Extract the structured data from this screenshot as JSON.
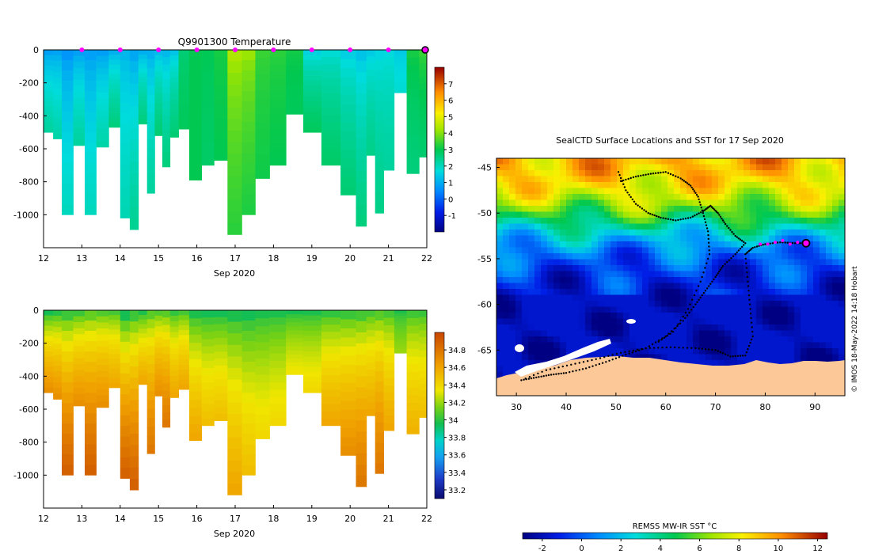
{
  "chart_data": [
    {
      "type": "heatmap",
      "title": "Q9901300  Temperature",
      "xlabel": "Sep 2020",
      "ylabel": "",
      "xlim": [
        12,
        22
      ],
      "ylim": [
        -1200,
        0
      ],
      "x_ticks": [
        "12",
        "13",
        "14",
        "15",
        "16",
        "17",
        "18",
        "19",
        "20",
        "21",
        "22"
      ],
      "y_ticks": [
        "0",
        "-200",
        "-400",
        "-600",
        "-800",
        "-1000"
      ],
      "y_tick_values": [
        0,
        -200,
        -400,
        -600,
        -800,
        -1000
      ],
      "surface_markers_day": [
        13,
        14,
        15,
        16,
        17,
        18,
        19,
        20,
        21
      ],
      "current_profile_day": 22.0,
      "colorbar": {
        "min": -2,
        "max": 8,
        "ticks": [
          "-1",
          "0",
          "1",
          "2",
          "3",
          "4",
          "5",
          "6",
          "7"
        ],
        "tick_values": [
          -1,
          0,
          1,
          2,
          3,
          4,
          5,
          6,
          7
        ]
      },
      "profiles": [
        {
          "day": 12.15,
          "max_depth": 500,
          "surface": 0.4,
          "deep": 2.3
        },
        {
          "day": 12.35,
          "max_depth": 540,
          "surface": 0.5,
          "deep": 2.2
        },
        {
          "day": 12.6,
          "max_depth": 1000,
          "surface": 0.3,
          "deep": 2.0
        },
        {
          "day": 12.95,
          "max_depth": 580,
          "surface": 0.4,
          "deep": 2.3
        },
        {
          "day": 13.2,
          "max_depth": 1000,
          "surface": 0.5,
          "deep": 2.0
        },
        {
          "day": 13.55,
          "max_depth": 590,
          "surface": 0.4,
          "deep": 2.2
        },
        {
          "day": 13.85,
          "max_depth": 470,
          "surface": 0.6,
          "deep": 2.6
        },
        {
          "day": 14.15,
          "max_depth": 1020,
          "surface": 0.9,
          "deep": 2.1
        },
        {
          "day": 14.35,
          "max_depth": 1090,
          "surface": 0.5,
          "deep": 2.4
        },
        {
          "day": 14.6,
          "max_depth": 450,
          "surface": 0.6,
          "deep": 2.6
        },
        {
          "day": 14.8,
          "max_depth": 870,
          "surface": 0.7,
          "deep": 2.3
        },
        {
          "day": 15.0,
          "max_depth": 520,
          "surface": 0.8,
          "deep": 2.7
        },
        {
          "day": 15.2,
          "max_depth": 710,
          "surface": 0.8,
          "deep": 2.6
        },
        {
          "day": 15.4,
          "max_depth": 530,
          "surface": 1.0,
          "deep": 2.7
        },
        {
          "day": 15.65,
          "max_depth": 480,
          "surface": 2.6,
          "deep": 2.9
        },
        {
          "day": 15.95,
          "max_depth": 790,
          "surface": 3.0,
          "deep": 3.0
        },
        {
          "day": 16.3,
          "max_depth": 700,
          "surface": 3.0,
          "deep": 2.8
        },
        {
          "day": 16.6,
          "max_depth": 670,
          "surface": 3.2,
          "deep": 3.0
        },
        {
          "day": 17.0,
          "max_depth": 1120,
          "surface": 4.6,
          "deep": 3.3
        },
        {
          "day": 17.35,
          "max_depth": 1000,
          "surface": 4.4,
          "deep": 3.2
        },
        {
          "day": 17.7,
          "max_depth": 780,
          "surface": 3.5,
          "deep": 3.1
        },
        {
          "day": 18.1,
          "max_depth": 700,
          "surface": 3.4,
          "deep": 3.0
        },
        {
          "day": 18.55,
          "max_depth": 390,
          "surface": 3.2,
          "deep": 2.9
        },
        {
          "day": 19.0,
          "max_depth": 500,
          "surface": 1.2,
          "deep": 2.9
        },
        {
          "day": 19.5,
          "max_depth": 700,
          "surface": 1.5,
          "deep": 2.8
        },
        {
          "day": 20.0,
          "max_depth": 880,
          "surface": 1.2,
          "deep": 2.7
        },
        {
          "day": 20.3,
          "max_depth": 1070,
          "surface": 1.0,
          "deep": 2.6
        },
        {
          "day": 20.55,
          "max_depth": 640,
          "surface": 1.2,
          "deep": 2.5
        },
        {
          "day": 20.75,
          "max_depth": 990,
          "surface": 1.4,
          "deep": 2.5
        },
        {
          "day": 21.0,
          "max_depth": 730,
          "surface": 1.5,
          "deep": 2.3
        },
        {
          "day": 21.3,
          "max_depth": 260,
          "surface": 1.3,
          "deep": 1.8
        },
        {
          "day": 21.65,
          "max_depth": 750,
          "surface": 3.3,
          "deep": 2.6
        },
        {
          "day": 21.95,
          "max_depth": 650,
          "surface": 3.6,
          "deep": 2.7
        }
      ]
    },
    {
      "type": "heatmap",
      "title": "",
      "xlabel": "Sep 2020",
      "ylabel": "",
      "xlim": [
        12,
        22
      ],
      "ylim": [
        -1200,
        0
      ],
      "x_ticks": [
        "12",
        "13",
        "14",
        "15",
        "16",
        "17",
        "18",
        "19",
        "20",
        "21",
        "22"
      ],
      "y_ticks": [
        "0",
        "-200",
        "-400",
        "-600",
        "-800",
        "-1000"
      ],
      "y_tick_values": [
        0,
        -200,
        -400,
        -600,
        -800,
        -1000
      ],
      "colorbar": {
        "min": 33.1,
        "max": 35.0,
        "ticks": [
          "33.2",
          "33.4",
          "33.6",
          "33.8",
          "34",
          "34.2",
          "34.4",
          "34.6",
          "34.8"
        ],
        "tick_values": [
          33.2,
          33.4,
          33.6,
          33.8,
          34.0,
          34.2,
          34.4,
          34.6,
          34.8
        ]
      },
      "profiles": [
        {
          "day": 12.15,
          "max_depth": 500,
          "surface": 33.75,
          "deep": 34.7
        },
        {
          "day": 12.35,
          "max_depth": 540,
          "surface": 33.8,
          "deep": 34.7
        },
        {
          "day": 12.6,
          "max_depth": 1000,
          "surface": 33.8,
          "deep": 34.9
        },
        {
          "day": 12.95,
          "max_depth": 580,
          "surface": 33.85,
          "deep": 34.7
        },
        {
          "day": 13.2,
          "max_depth": 1000,
          "surface": 33.9,
          "deep": 34.9
        },
        {
          "day": 13.55,
          "max_depth": 590,
          "surface": 33.9,
          "deep": 34.7
        },
        {
          "day": 13.85,
          "max_depth": 470,
          "surface": 33.9,
          "deep": 34.6
        },
        {
          "day": 14.15,
          "max_depth": 1020,
          "surface": 33.7,
          "deep": 34.9
        },
        {
          "day": 14.35,
          "max_depth": 1090,
          "surface": 33.8,
          "deep": 34.9
        },
        {
          "day": 14.6,
          "max_depth": 450,
          "surface": 33.8,
          "deep": 34.6
        },
        {
          "day": 14.8,
          "max_depth": 870,
          "surface": 33.9,
          "deep": 34.8
        },
        {
          "day": 15.0,
          "max_depth": 520,
          "surface": 33.9,
          "deep": 34.7
        },
        {
          "day": 15.2,
          "max_depth": 710,
          "surface": 33.9,
          "deep": 34.8
        },
        {
          "day": 15.4,
          "max_depth": 530,
          "surface": 33.85,
          "deep": 34.6
        },
        {
          "day": 15.65,
          "max_depth": 480,
          "surface": 33.9,
          "deep": 34.6
        },
        {
          "day": 15.95,
          "max_depth": 790,
          "surface": 33.8,
          "deep": 34.6
        },
        {
          "day": 16.3,
          "max_depth": 700,
          "surface": 33.8,
          "deep": 34.5
        },
        {
          "day": 16.6,
          "max_depth": 670,
          "surface": 33.8,
          "deep": 34.5
        },
        {
          "day": 17.0,
          "max_depth": 1120,
          "surface": 33.8,
          "deep": 34.6
        },
        {
          "day": 17.35,
          "max_depth": 1000,
          "surface": 33.8,
          "deep": 34.5
        },
        {
          "day": 17.7,
          "max_depth": 780,
          "surface": 33.85,
          "deep": 34.4
        },
        {
          "day": 18.1,
          "max_depth": 700,
          "surface": 33.85,
          "deep": 34.4
        },
        {
          "day": 18.55,
          "max_depth": 390,
          "surface": 33.85,
          "deep": 34.35
        },
        {
          "day": 19.0,
          "max_depth": 500,
          "surface": 33.85,
          "deep": 34.4
        },
        {
          "day": 19.5,
          "max_depth": 700,
          "surface": 33.85,
          "deep": 34.6
        },
        {
          "day": 20.0,
          "max_depth": 880,
          "surface": 33.85,
          "deep": 34.7
        },
        {
          "day": 20.3,
          "max_depth": 1070,
          "surface": 33.85,
          "deep": 34.8
        },
        {
          "day": 20.55,
          "max_depth": 640,
          "surface": 33.9,
          "deep": 34.6
        },
        {
          "day": 20.75,
          "max_depth": 990,
          "surface": 33.9,
          "deep": 34.8
        },
        {
          "day": 21.0,
          "max_depth": 730,
          "surface": 33.9,
          "deep": 34.6
        },
        {
          "day": 21.3,
          "max_depth": 260,
          "surface": 33.9,
          "deep": 34.2
        },
        {
          "day": 21.65,
          "max_depth": 750,
          "surface": 33.9,
          "deep": 34.55
        },
        {
          "day": 21.95,
          "max_depth": 650,
          "surface": 33.9,
          "deep": 34.5
        }
      ]
    },
    {
      "type": "heatmap",
      "title": "SealCTD Surface Locations and SST for 17 Sep 2020",
      "xlabel": "",
      "ylabel": "",
      "xlim": [
        26,
        96
      ],
      "ylim": [
        -70,
        -44
      ],
      "x_ticks": [
        "30",
        "40",
        "50",
        "60",
        "70",
        "80",
        "90"
      ],
      "x_tick_values": [
        30,
        40,
        50,
        60,
        70,
        80,
        90
      ],
      "y_ticks": [
        "-45",
        "-50",
        "-55",
        "-60",
        "-65"
      ],
      "y_tick_values": [
        -45,
        -50,
        -55,
        -60,
        -65
      ],
      "colorbar": {
        "label": "REMSS MW-IR SST °C",
        "min": -3,
        "max": 12.5,
        "ticks": [
          "-2",
          "0",
          "2",
          "4",
          "6",
          "8",
          "10",
          "12"
        ],
        "tick_values": [
          -2,
          0,
          2,
          4,
          6,
          8,
          10,
          12
        ]
      },
      "current_position": [
        88.2,
        -53.3
      ],
      "recent_positions": [
        [
          79,
          -53.4
        ],
        [
          80.5,
          -53.4
        ],
        [
          82,
          -53.2
        ],
        [
          83.5,
          -53.0
        ],
        [
          85,
          -53.4
        ],
        [
          86.5,
          -53.2
        ]
      ],
      "track": [
        [
          50.5,
          -45.5
        ],
        [
          52,
          -47.5
        ],
        [
          54,
          -49.0
        ],
        [
          56.5,
          -50.0
        ],
        [
          59,
          -50.5
        ],
        [
          62,
          -50.8
        ],
        [
          65,
          -50.5
        ],
        [
          67.5,
          -49.8
        ],
        [
          69,
          -49.2
        ],
        [
          70.5,
          -50.0
        ],
        [
          72,
          -51.2
        ],
        [
          74,
          -52.5
        ],
        [
          76,
          -53.3
        ],
        [
          74,
          -54.5
        ],
        [
          71.5,
          -55.8
        ],
        [
          70,
          -57.0
        ],
        [
          68,
          -58.5
        ],
        [
          66,
          -60.0
        ],
        [
          63.5,
          -61.8
        ],
        [
          60,
          -63.5
        ],
        [
          56,
          -64.8
        ],
        [
          52,
          -65.5
        ],
        [
          48,
          -66.3
        ],
        [
          44,
          -67.0
        ],
        [
          40,
          -67.5
        ],
        [
          37,
          -67.7
        ],
        [
          34,
          -68.0
        ],
        [
          31,
          -68.3
        ],
        [
          36,
          -67.2
        ],
        [
          41,
          -66.6
        ],
        [
          46,
          -66.0
        ],
        [
          51,
          -65.3
        ],
        [
          56,
          -64.8
        ],
        [
          61,
          -64.7
        ],
        [
          66,
          -64.8
        ],
        [
          70,
          -65.0
        ],
        [
          73,
          -65.7
        ],
        [
          76,
          -65.6
        ],
        [
          77.5,
          -63.5
        ],
        [
          77,
          -60.5
        ],
        [
          76.5,
          -57.5
        ],
        [
          76,
          -54.5
        ],
        [
          77.5,
          -53.8
        ],
        [
          80,
          -53.4
        ],
        [
          83,
          -53.2
        ],
        [
          86,
          -53.3
        ],
        [
          88.2,
          -53.3
        ]
      ],
      "track2": [
        [
          51,
          -46.5
        ],
        [
          54,
          -46.0
        ],
        [
          57,
          -45.7
        ],
        [
          60,
          -45.5
        ],
        [
          63,
          -46.2
        ],
        [
          65,
          -47.0
        ],
        [
          66.5,
          -48.2
        ],
        [
          67.5,
          -50.0
        ],
        [
          68.5,
          -52.0
        ],
        [
          68.8,
          -54.5
        ],
        [
          67,
          -57.5
        ],
        [
          64.5,
          -60.5
        ],
        [
          61.5,
          -63.0
        ],
        [
          58,
          -64.3
        ]
      ],
      "credit": "© IMOS 18-May-2022 14:18 Hobart"
    }
  ]
}
